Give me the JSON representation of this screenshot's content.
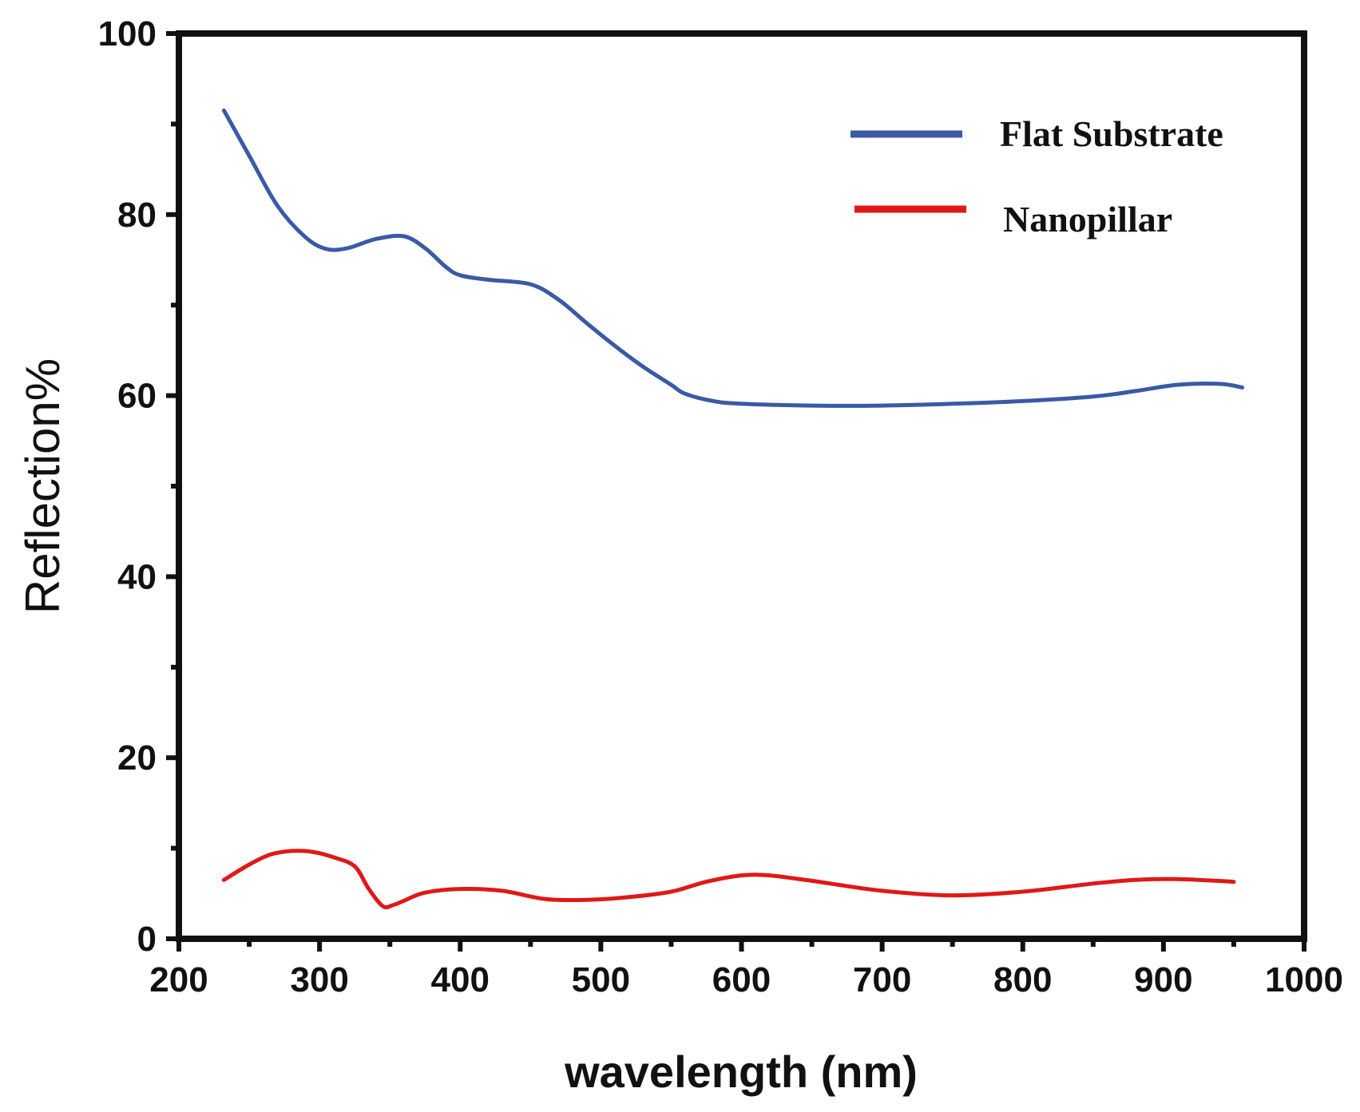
{
  "chart_data": {
    "type": "line",
    "title": "",
    "xlabel": "wavelength (nm)",
    "ylabel": "Reflection%",
    "xlim": [
      200,
      1000
    ],
    "ylim": [
      0,
      100
    ],
    "x_ticks": [
      200,
      300,
      400,
      500,
      600,
      700,
      800,
      900,
      1000
    ],
    "y_ticks": [
      0,
      20,
      40,
      60,
      80,
      100
    ],
    "grid": false,
    "legend_position": "top-right",
    "series": [
      {
        "name": "Flat Substrate",
        "color": "#3a5aa6",
        "x": [
          232,
          250,
          270,
          290,
          305,
          320,
          340,
          360,
          375,
          390,
          400,
          420,
          450,
          470,
          490,
          510,
          530,
          550,
          560,
          580,
          600,
          650,
          700,
          750,
          800,
          850,
          880,
          910,
          940,
          956
        ],
        "y": [
          91.5,
          86.5,
          81.0,
          77.5,
          76.2,
          76.3,
          77.3,
          77.6,
          76.3,
          74.2,
          73.3,
          72.8,
          72.3,
          70.6,
          68.0,
          65.5,
          63.2,
          61.2,
          60.2,
          59.4,
          59.1,
          58.9,
          58.9,
          59.1,
          59.4,
          59.9,
          60.5,
          61.2,
          61.3,
          60.9
        ]
      },
      {
        "name": "Nanopillar",
        "color": "#e01818",
        "x": [
          232,
          250,
          265,
          280,
          295,
          310,
          325,
          335,
          345,
          352,
          360,
          375,
          400,
          430,
          460,
          490,
          520,
          550,
          575,
          600,
          620,
          650,
          700,
          750,
          800,
          850,
          880,
          910,
          950
        ],
        "y": [
          6.5,
          8.2,
          9.3,
          9.7,
          9.6,
          9.0,
          8.0,
          5.5,
          3.6,
          3.7,
          4.2,
          5.1,
          5.5,
          5.3,
          4.4,
          4.3,
          4.6,
          5.2,
          6.3,
          7.0,
          7.0,
          6.4,
          5.3,
          4.8,
          5.2,
          6.1,
          6.5,
          6.6,
          6.3
        ]
      }
    ]
  }
}
